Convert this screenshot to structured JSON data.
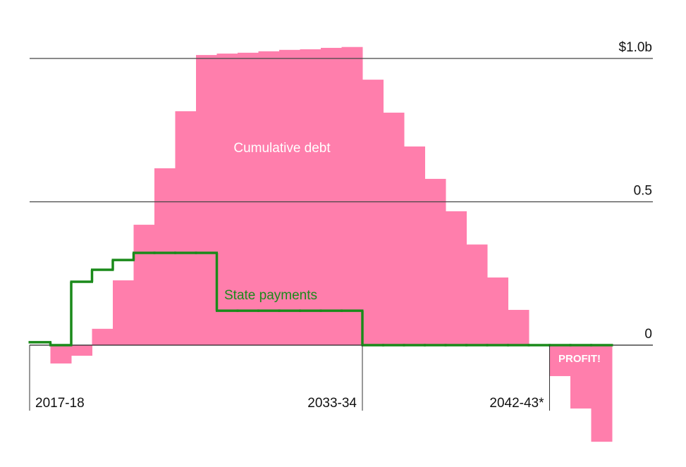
{
  "chart_data": {
    "type": "step",
    "categories": [
      "2017-18",
      null,
      null,
      null,
      null,
      null,
      null,
      null,
      null,
      null,
      null,
      null,
      null,
      null,
      null,
      null,
      "2033-34",
      null,
      null,
      null,
      null,
      null,
      null,
      null,
      null,
      "2042-43*",
      null,
      null
    ],
    "series": [
      {
        "name": "Cumulative debt",
        "color": "#ff7eac",
        "values": [
          0,
          -0.064,
          -0.037,
          0.057,
          0.226,
          0.42,
          0.617,
          0.816,
          1.012,
          1.017,
          1.02,
          1.025,
          1.03,
          1.032,
          1.037,
          1.04,
          0.926,
          0.811,
          0.693,
          0.58,
          0.467,
          0.351,
          0.236,
          0.123,
          0,
          -0.108,
          -0.221,
          -0.337
        ]
      },
      {
        "name": "State payments",
        "color": "#1a8a1a",
        "values": [
          0.01,
          0,
          0.221,
          0.263,
          0.297,
          0.322,
          0.322,
          0.322,
          0.322,
          0.12,
          0.12,
          0.12,
          0.12,
          0.12,
          0.12,
          0.12,
          0,
          0,
          0,
          0,
          0,
          0,
          0,
          0,
          0,
          0,
          0,
          0
        ]
      }
    ],
    "annotations": [
      "Cumulative debt",
      "State payments",
      "PROFIT!"
    ],
    "ylim": [
      -0.35,
      1.05
    ],
    "yticks": [
      0,
      0.5,
      {
        "value": 1,
        "label": "$1.0b"
      }
    ],
    "grid": true
  }
}
